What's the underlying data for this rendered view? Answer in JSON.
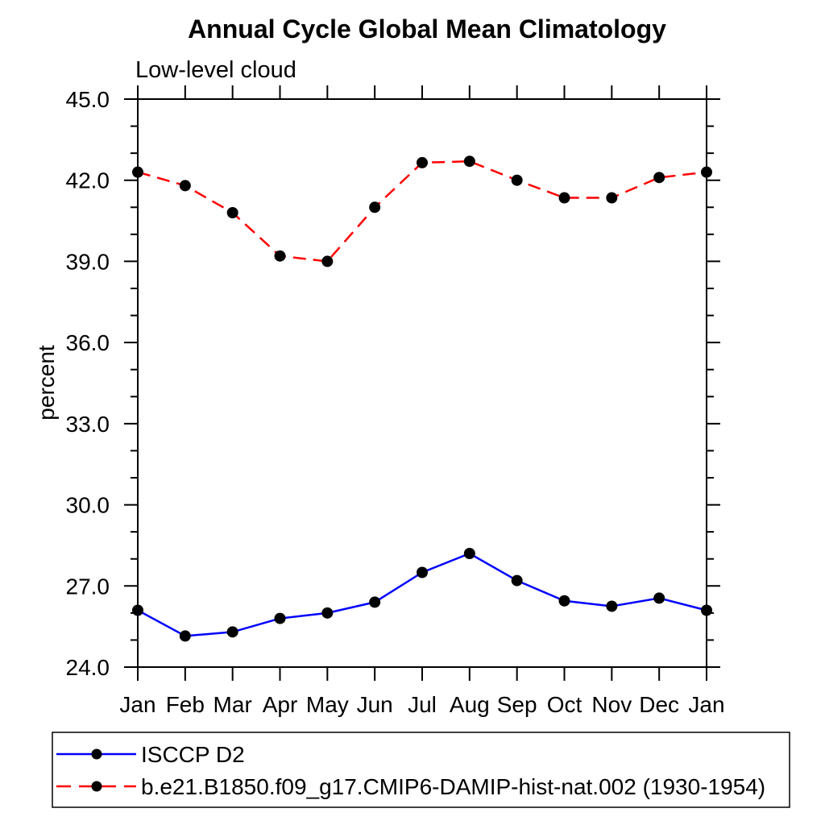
{
  "chart_data": {
    "type": "line",
    "title": "Annual Cycle Global Mean Climatology",
    "subtitle": "Low-level cloud",
    "xlabel": "",
    "ylabel": "percent",
    "ylim": [
      24.0,
      45.0
    ],
    "y_major_ticks": [
      24,
      27,
      30,
      33,
      36,
      39,
      42,
      45
    ],
    "y_major_tick_labels": [
      "24.0",
      "27.0",
      "30.0",
      "33.0",
      "36.0",
      "39.0",
      "42.0",
      "45.0"
    ],
    "y_minor_step": 1.0,
    "x_tick_labels": [
      "Jan",
      "Feb",
      "Mar",
      "Apr",
      "May",
      "Jun",
      "Jul",
      "Aug",
      "Sep",
      "Oct",
      "Nov",
      "Dec",
      "Jan"
    ],
    "grid": false,
    "legend_position": "bottom-left-box",
    "series": [
      {
        "name": "ISCCP D2",
        "color": "#0000ff",
        "line_style": "solid",
        "marker": "filled-circle",
        "marker_color": "#000000",
        "values": [
          26.1,
          25.15,
          25.3,
          25.8,
          26.0,
          26.4,
          27.5,
          28.2,
          27.2,
          26.45,
          26.25,
          26.55,
          26.1
        ]
      },
      {
        "name": "b.e21.B1850.f09_g17.CMIP6-DAMIP-hist-nat.002 (1930-1954)",
        "color": "#ff0000",
        "line_style": "dashed",
        "marker": "filled-circle",
        "marker_color": "#000000",
        "values": [
          42.3,
          41.8,
          40.8,
          39.2,
          39.0,
          41.0,
          42.65,
          42.7,
          42.0,
          41.35,
          41.35,
          42.1,
          42.3
        ]
      }
    ],
    "axis_color": "#000000"
  }
}
